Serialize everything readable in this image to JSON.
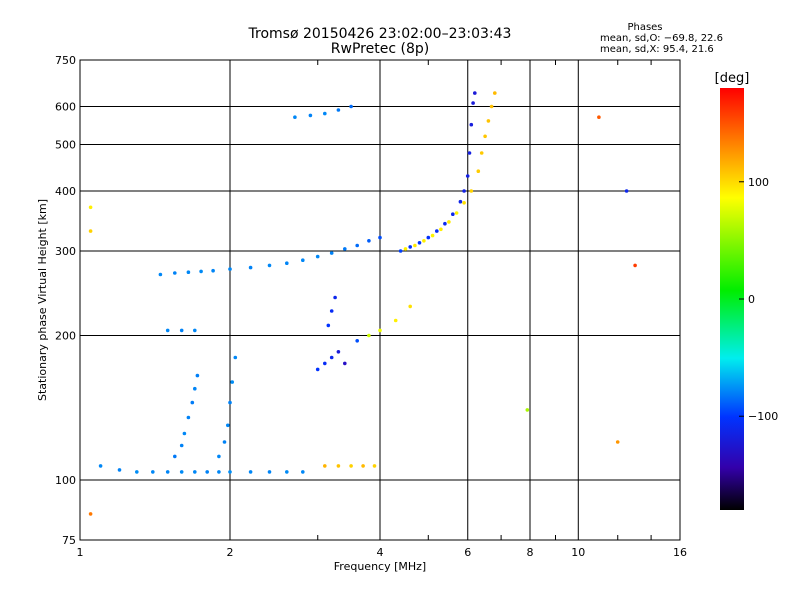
{
  "header": {
    "title": "Tromsø 20150426 23:02:00–23:03:43",
    "subtitle": "RwPretec (8p)"
  },
  "phases": {
    "title": "Phases",
    "o_line": "mean, sd,O: −69.8, 22.6",
    "x_line": "mean, sd,X:  95.4, 21.6"
  },
  "colorbar": {
    "label": "[deg]",
    "range": [
      -180,
      180
    ],
    "ticks": [
      100,
      0,
      -100
    ],
    "tick_labels": [
      "100",
      "0",
      "−100"
    ]
  },
  "chart_data": {
    "type": "scatter",
    "title": "Tromsø 20150426 23:02:00–23:03:43",
    "subtitle": "RwPretec (8p)",
    "xlabel": "Frequency [MHz]",
    "ylabel": "Stationary phase Virtual Height [km]",
    "x_scale": "log",
    "y_scale": "log",
    "xlim": [
      1,
      16
    ],
    "ylim": [
      75,
      750
    ],
    "x_ticks": [
      1,
      2,
      4,
      6,
      8,
      10,
      16
    ],
    "x_tick_labels": [
      "1",
      "2",
      "4",
      "6",
      "8",
      "10",
      "16"
    ],
    "y_ticks": [
      75,
      100,
      200,
      300,
      400,
      500,
      600,
      750
    ],
    "y_tick_labels": [
      "75",
      "100",
      "200",
      "300",
      "400",
      "500",
      "600",
      "750"
    ],
    "grid": true,
    "color_encoding": "phase (deg)",
    "series": [
      {
        "points": [
          [
            1.1,
            107,
            -70
          ],
          [
            1.2,
            105,
            -72
          ],
          [
            1.3,
            104,
            -68
          ],
          [
            1.4,
            104,
            -70
          ],
          [
            1.5,
            104,
            -71
          ],
          [
            1.6,
            104,
            -69
          ],
          [
            1.7,
            104,
            -70
          ],
          [
            1.8,
            104,
            -72
          ],
          [
            1.9,
            104,
            -70
          ],
          [
            2.0,
            104,
            -68
          ],
          [
            2.2,
            104,
            -70
          ],
          [
            2.4,
            104,
            -71
          ],
          [
            2.6,
            104,
            -69
          ],
          [
            2.8,
            104,
            -70
          ],
          [
            1.55,
            112,
            -75
          ],
          [
            1.6,
            118,
            -72
          ],
          [
            1.62,
            125,
            -70
          ],
          [
            1.65,
            135,
            -72
          ],
          [
            1.68,
            145,
            -74
          ],
          [
            1.7,
            155,
            -71
          ],
          [
            1.72,
            165,
            -73
          ],
          [
            1.9,
            112,
            -70
          ],
          [
            1.95,
            120,
            -72
          ],
          [
            1.98,
            130,
            -70
          ],
          [
            2.0,
            145,
            -72
          ],
          [
            2.02,
            160,
            -68
          ],
          [
            2.05,
            180,
            -70
          ],
          [
            1.5,
            205,
            -70
          ],
          [
            1.6,
            205,
            -72
          ],
          [
            1.7,
            205,
            -70
          ],
          [
            1.45,
            268,
            -70
          ],
          [
            1.55,
            270,
            -72
          ],
          [
            1.65,
            271,
            -70
          ],
          [
            1.75,
            272,
            -69
          ],
          [
            1.85,
            273,
            -71
          ],
          [
            2.0,
            275,
            -70
          ],
          [
            2.2,
            277,
            -72
          ],
          [
            2.4,
            280,
            -70
          ],
          [
            2.6,
            283,
            -71
          ],
          [
            2.8,
            287,
            -70
          ],
          [
            3.0,
            292,
            -70
          ],
          [
            3.2,
            297,
            -72
          ],
          [
            3.4,
            303,
            -75
          ],
          [
            3.6,
            308,
            -80
          ],
          [
            3.8,
            315,
            -85
          ],
          [
            4.0,
            320,
            -90
          ],
          [
            2.7,
            570,
            -70
          ],
          [
            2.9,
            575,
            -72
          ],
          [
            3.1,
            580,
            -70
          ],
          [
            3.3,
            590,
            -75
          ],
          [
            3.5,
            600,
            -80
          ],
          [
            3.0,
            170,
            -100
          ],
          [
            3.1,
            175,
            -105
          ],
          [
            3.2,
            180,
            -110
          ],
          [
            3.3,
            185,
            -120
          ],
          [
            3.4,
            175,
            -130
          ],
          [
            3.15,
            210,
            -100
          ],
          [
            3.2,
            225,
            -105
          ],
          [
            3.25,
            240,
            -110
          ],
          [
            4.4,
            300,
            -95
          ],
          [
            4.6,
            306,
            -100
          ],
          [
            4.8,
            312,
            -100
          ],
          [
            5.0,
            320,
            -102
          ],
          [
            5.2,
            330,
            -105
          ],
          [
            5.4,
            342,
            -108
          ],
          [
            5.6,
            358,
            -110
          ],
          [
            5.8,
            380,
            -112
          ],
          [
            5.9,
            400,
            -114
          ],
          [
            6.0,
            430,
            -115
          ],
          [
            6.05,
            480,
            -116
          ],
          [
            6.1,
            550,
            -118
          ],
          [
            6.15,
            610,
            -120
          ],
          [
            6.2,
            640,
            -121
          ],
          [
            4.5,
            303,
            100
          ],
          [
            4.7,
            308,
            102
          ],
          [
            4.9,
            315,
            100
          ],
          [
            5.1,
            323,
            98
          ],
          [
            5.3,
            333,
            100
          ],
          [
            5.5,
            345,
            102
          ],
          [
            5.7,
            360,
            100
          ],
          [
            5.9,
            378,
            105
          ],
          [
            6.1,
            400,
            110
          ],
          [
            6.3,
            440,
            112
          ],
          [
            6.4,
            480,
            113
          ],
          [
            6.5,
            520,
            114
          ],
          [
            6.6,
            560,
            115
          ],
          [
            6.7,
            600,
            116
          ],
          [
            6.8,
            640,
            118
          ],
          [
            3.1,
            107,
            120
          ],
          [
            3.3,
            107,
            115
          ],
          [
            3.5,
            107,
            110
          ],
          [
            3.7,
            107,
            118
          ],
          [
            3.9,
            107,
            110
          ],
          [
            3.6,
            195,
            -90
          ],
          [
            3.8,
            200,
            80
          ],
          [
            4.0,
            205,
            90
          ],
          [
            4.3,
            215,
            100
          ],
          [
            4.6,
            230,
            105
          ],
          [
            1.05,
            330,
            110
          ],
          [
            1.05,
            370,
            100
          ],
          [
            1.05,
            85,
            140
          ],
          [
            7.9,
            140,
            70
          ],
          [
            12.5,
            400,
            -110
          ],
          [
            13.0,
            280,
            160
          ],
          [
            12.0,
            120,
            130
          ],
          [
            11.0,
            570,
            150
          ]
        ]
      }
    ]
  }
}
